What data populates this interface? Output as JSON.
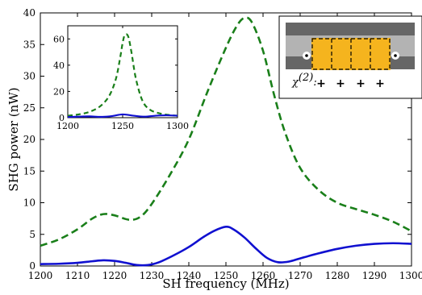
{
  "chart_data": [
    {
      "type": "line",
      "xlabel": "SH frequency (MHz)",
      "ylabel": "SHG power (nW)",
      "xlim": [
        1200,
        1300
      ],
      "ylim": [
        0,
        40
      ],
      "xticks": [
        "1200",
        "1210",
        "1220",
        "1230",
        "1240",
        "1250",
        "1260",
        "1270",
        "1280",
        "1290",
        "1300"
      ],
      "yticks": [
        "0",
        "5",
        "10",
        "15",
        "20",
        "25",
        "30",
        "35",
        "40"
      ],
      "grid": false,
      "series": [
        {
          "style": "dashed",
          "color": "#1a7f1a",
          "x": [
            1200,
            1205,
            1210,
            1214,
            1217,
            1220,
            1224,
            1227,
            1230,
            1235,
            1240,
            1245,
            1250,
            1253,
            1255,
            1257,
            1260,
            1263,
            1266,
            1270,
            1275,
            1280,
            1285,
            1290,
            1295,
            1300
          ],
          "y": [
            3.2,
            4.2,
            5.8,
            7.5,
            8.2,
            8.0,
            7.3,
            7.8,
            9.8,
            14.5,
            20.0,
            27.5,
            34.5,
            38.0,
            39.2,
            38.5,
            34.0,
            27.0,
            21.0,
            15.5,
            12.0,
            10.0,
            9.0,
            8.1,
            7.0,
            5.5
          ]
        },
        {
          "style": "solid",
          "color": "#1010d0",
          "x": [
            1200,
            1205,
            1210,
            1214,
            1217,
            1220,
            1223,
            1226,
            1229,
            1232,
            1236,
            1240,
            1244,
            1247,
            1250,
            1252,
            1255,
            1258,
            1261,
            1264,
            1267,
            1270,
            1275,
            1280,
            1285,
            1290,
            1295,
            1300
          ],
          "y": [
            0.3,
            0.35,
            0.5,
            0.75,
            0.9,
            0.8,
            0.5,
            0.15,
            0.15,
            0.6,
            1.7,
            3.0,
            4.6,
            5.6,
            6.2,
            5.8,
            4.5,
            2.8,
            1.3,
            0.6,
            0.7,
            1.2,
            2.0,
            2.7,
            3.2,
            3.5,
            3.6,
            3.5
          ]
        }
      ]
    },
    {
      "type": "line",
      "xlim": [
        1200,
        1300
      ],
      "ylim": [
        0,
        70
      ],
      "xticks": [
        "1200",
        "1250",
        "1300"
      ],
      "yticks": [
        "0",
        "20",
        "40",
        "60"
      ],
      "series": [
        {
          "style": "dashed",
          "color": "#1a7f1a",
          "x": [
            1200,
            1210,
            1220,
            1230,
            1238,
            1244,
            1248,
            1250,
            1252,
            1255,
            1258,
            1262,
            1268,
            1275,
            1285,
            1295,
            1300
          ],
          "y": [
            1.5,
            2.5,
            4.5,
            9.0,
            17.0,
            30.0,
            47.0,
            57.0,
            63.0,
            62.0,
            50.0,
            30.0,
            13.0,
            6.0,
            3.0,
            1.8,
            1.5
          ]
        },
        {
          "style": "solid",
          "color": "#1010d0",
          "x": [
            1200,
            1210,
            1220,
            1230,
            1240,
            1250,
            1260,
            1270,
            1280,
            1290,
            1300
          ],
          "y": [
            0.5,
            0.8,
            1.0,
            0.6,
            1.2,
            2.5,
            1.5,
            0.8,
            1.5,
            1.8,
            1.5
          ]
        }
      ]
    }
  ],
  "schematic": {
    "chi_label": "χ",
    "chi_superscript": "(2)",
    "chi_colon": ":",
    "signs": [
      "+",
      "+",
      "+",
      "+"
    ],
    "colors": {
      "outer": "#ffffff",
      "substrate": "#666666",
      "waveguide": "#b3b3b3",
      "crystal": "#f5b41e"
    }
  }
}
